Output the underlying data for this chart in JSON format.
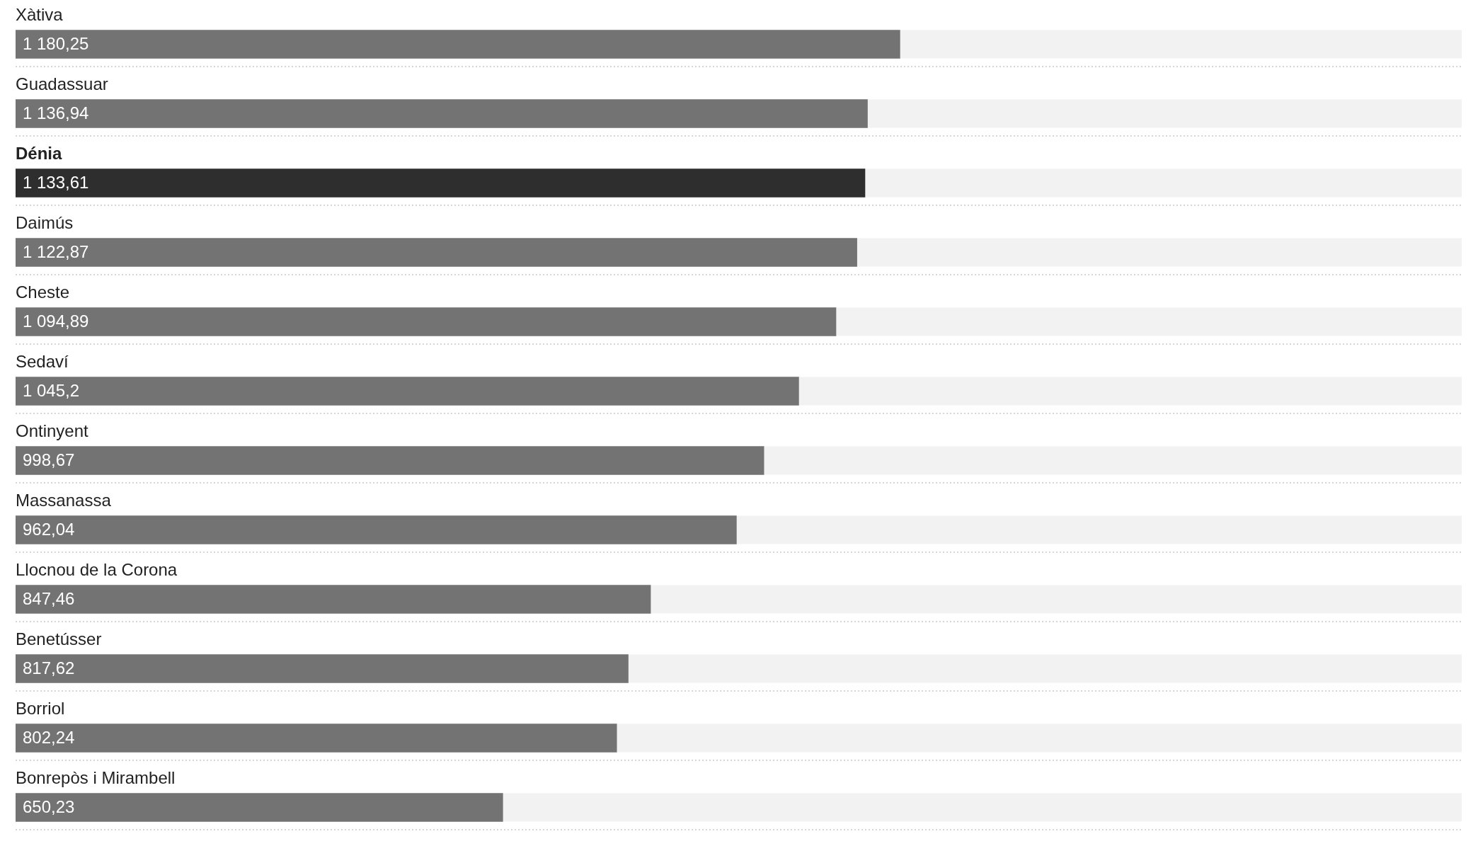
{
  "chart_data": {
    "type": "bar",
    "orientation": "horizontal",
    "categories": [
      "Xàtiva",
      "Guadassuar",
      "Dénia",
      "Daimús",
      "Cheste",
      "Sedaví",
      "Ontinyent",
      "Massanassa",
      "Llocnou de la Corona",
      "Benetússer",
      "Borriol",
      "Bonrepòs i Mirambell"
    ],
    "values": [
      1180.25,
      1136.94,
      1133.61,
      1122.87,
      1094.89,
      1045.2,
      998.67,
      962.04,
      847.46,
      817.62,
      802.24,
      650.23
    ],
    "value_labels": [
      "1 180,25",
      "1 136,94",
      "1 133,61",
      "1 122,87",
      "1 094,89",
      "1 045,2",
      "998,67",
      "962,04",
      "847,46",
      "817,62",
      "802,24",
      "650,23"
    ],
    "colors": [
      "#737373",
      "#737373",
      "#2e2e2e",
      "#737373",
      "#737373",
      "#737373",
      "#737373",
      "#737373",
      "#737373",
      "#737373",
      "#737373",
      "#737373"
    ],
    "xlim": [
      0,
      1930
    ],
    "tick_labels": "y",
    "grid": "y"
  }
}
